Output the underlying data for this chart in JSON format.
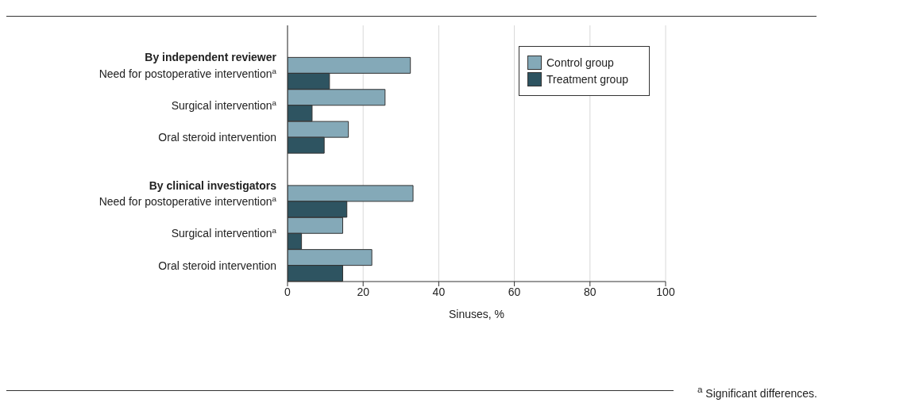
{
  "chart_data": {
    "type": "bar",
    "orientation": "horizontal",
    "xlabel": "Sinuses, %",
    "categories": [
      "By independent reviewer",
      "Need for postoperative intervention$^{a}$",
      "Surgical intervention$^{a}$",
      "Oral steroid intervention",
      "By clinical investigators",
      "Need for postoperative intervention$^{a}$",
      "Surgical intervention$^{a}$",
      "Oral steroid intervention"
    ],
    "series": [
      {
        "name": "Control group",
        "color": "#84a9b8",
        "values": [
          null,
          32.5,
          25.8,
          16.1,
          null,
          33.2,
          14.6,
          22.3
        ]
      },
      {
        "name": "Treatment group",
        "color": "#2e5461",
        "values": [
          null,
          11.1,
          6.5,
          9.7,
          null,
          15.7,
          3.7,
          14.6
        ]
      }
    ],
    "xlim": [
      0,
      100
    ],
    "xticks": [
      0,
      20,
      40,
      60,
      80,
      100
    ],
    "grid": "x",
    "legend": "top right",
    "annotations": [
      "$^{a}$ Significant differences."
    ]
  }
}
